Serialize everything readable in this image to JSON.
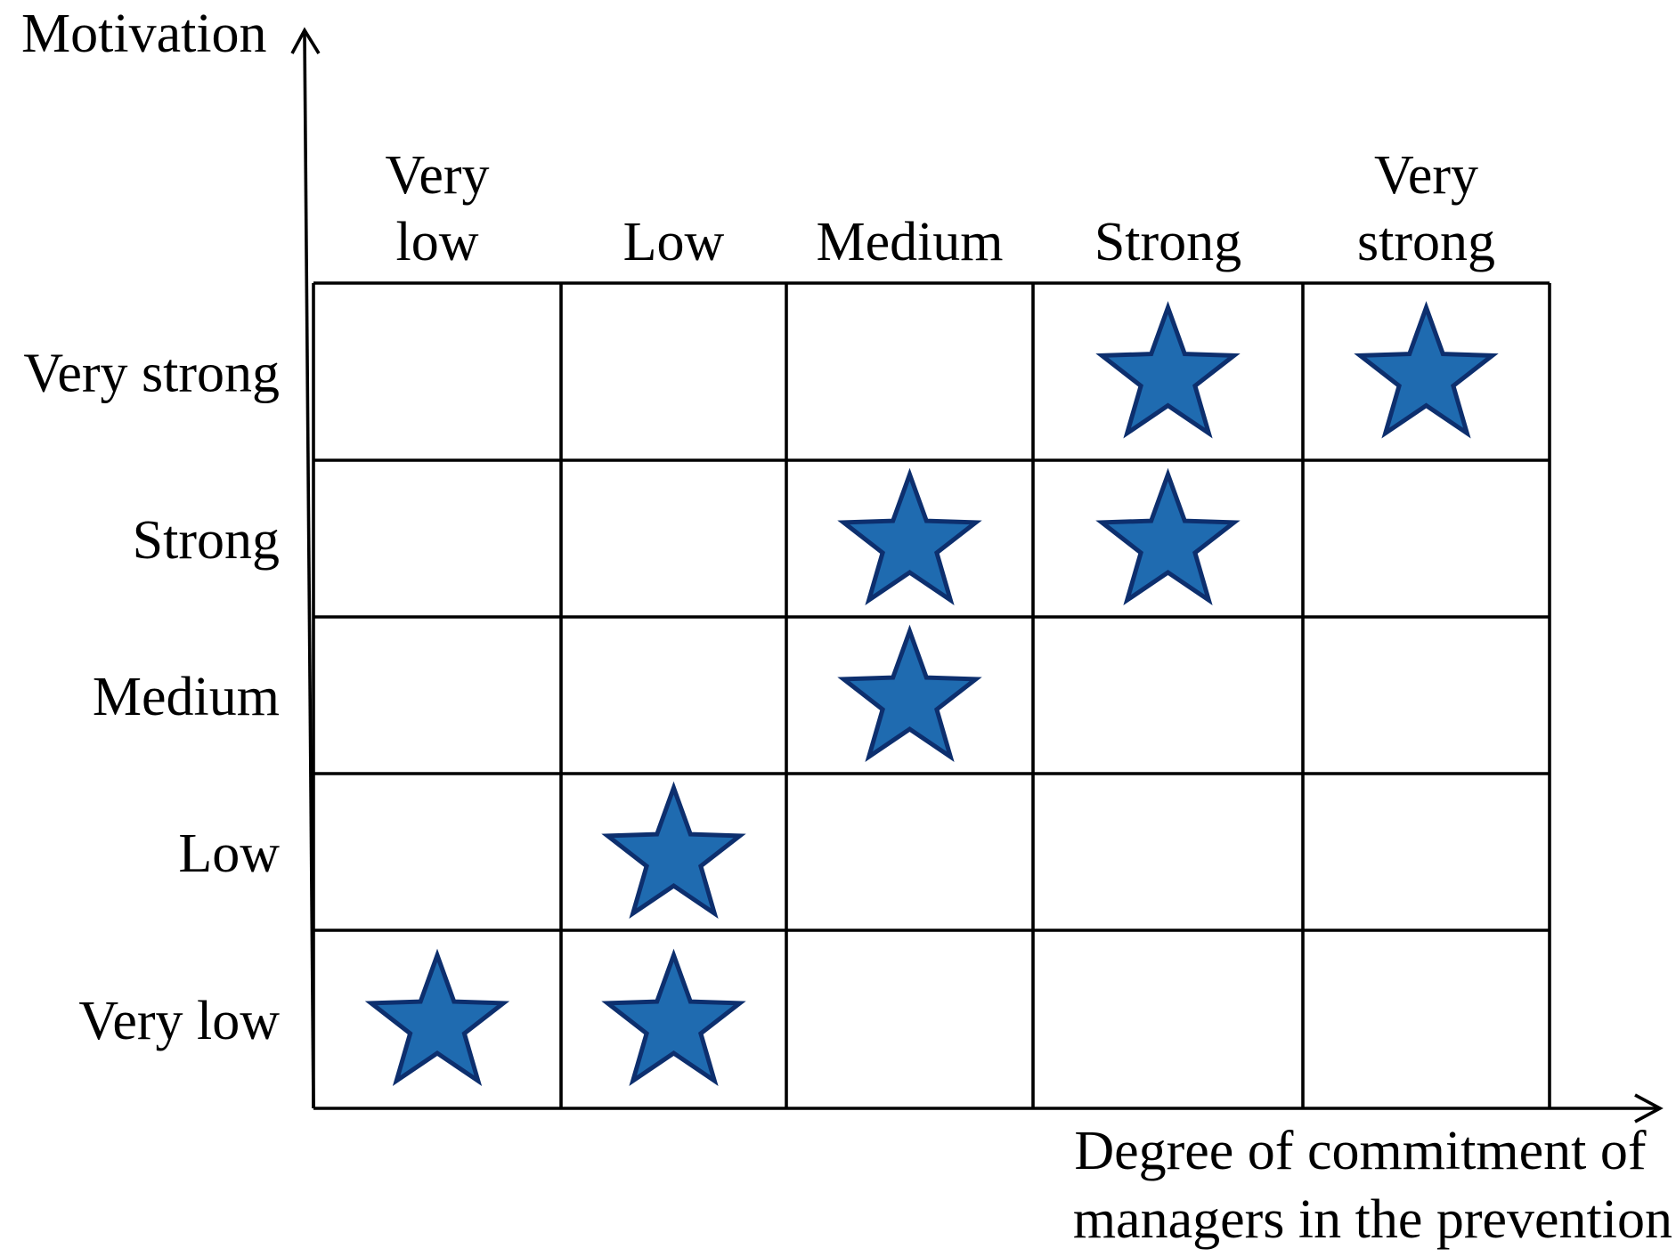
{
  "y_axis": {
    "title": "Motivation",
    "levels": [
      "Very low",
      "Low",
      "Medium",
      "Strong",
      "Very strong"
    ]
  },
  "x_axis": {
    "title_lines": [
      "Degree of commitment of",
      "managers in the prevention"
    ],
    "levels": [
      [
        "Very",
        "low"
      ],
      [
        "Low"
      ],
      [
        "Medium"
      ],
      [
        "Strong"
      ],
      [
        "Very",
        "strong"
      ]
    ]
  },
  "markers": [
    {
      "commitment": "Very low",
      "motivation": "Very low"
    },
    {
      "commitment": "Low",
      "motivation": "Very low"
    },
    {
      "commitment": "Low",
      "motivation": "Low"
    },
    {
      "commitment": "Medium",
      "motivation": "Medium"
    },
    {
      "commitment": "Medium",
      "motivation": "Strong"
    },
    {
      "commitment": "Strong",
      "motivation": "Strong"
    },
    {
      "commitment": "Strong",
      "motivation": "Very strong"
    },
    {
      "commitment": "Very strong",
      "motivation": "Very strong"
    }
  ],
  "marker_icon": "star-icon",
  "colors": {
    "star_fill": "#1f6bb0",
    "star_stroke": "#0d2f6e",
    "lines": "#000000"
  }
}
